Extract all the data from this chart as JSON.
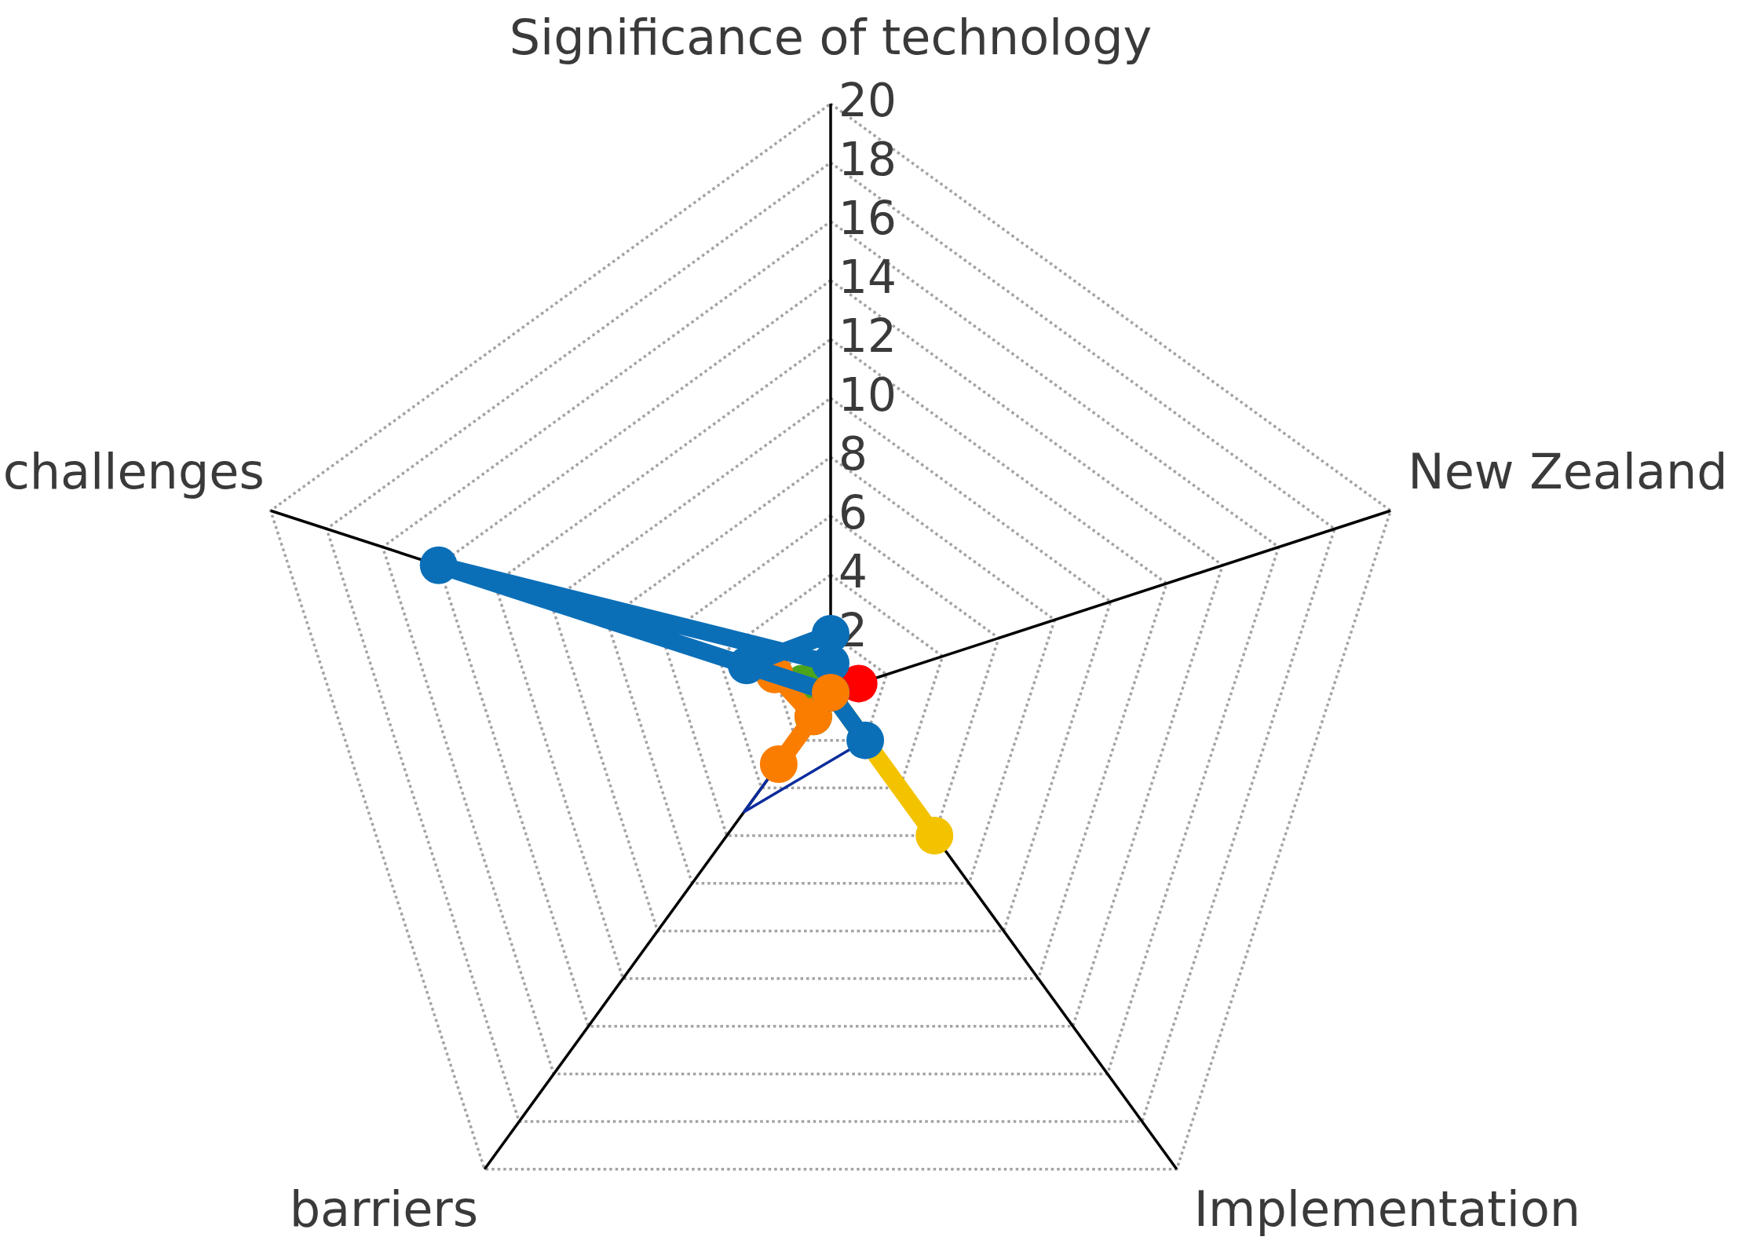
{
  "chart_data": {
    "type": "radar",
    "categories": [
      "Significance of technology",
      "New Zealand",
      "Implementation",
      "barriers",
      "challenges"
    ],
    "ylim": [
      0,
      20
    ],
    "yticks": [
      2,
      4,
      6,
      8,
      10,
      12,
      14,
      16,
      18,
      20
    ],
    "grid": true,
    "marker": "circle",
    "series": [
      {
        "color": "#0c2c9c",
        "marker": "none",
        "values": [
          0,
          0,
          2,
          5,
          0
        ]
      },
      {
        "color": "#4aa51c",
        "values": [
          0,
          0,
          0,
          1,
          1
        ]
      },
      {
        "color": "#ff0000",
        "values": [
          0,
          1,
          0,
          0,
          0
        ]
      },
      {
        "color": "#fa7d00",
        "values": [
          0,
          0,
          0,
          1,
          2
        ]
      },
      {
        "color": "#f3c300",
        "values": [
          0,
          0,
          6,
          0,
          0
        ]
      },
      {
        "color": "#0b6fb8",
        "values": [
          2,
          0,
          2,
          0,
          3
        ]
      },
      {
        "color": "#0b6fb8",
        "values": [
          1,
          0,
          0,
          0,
          14
        ]
      },
      {
        "color": "#fa7d00",
        "values": [
          0,
          0,
          0,
          3,
          0
        ]
      }
    ]
  }
}
